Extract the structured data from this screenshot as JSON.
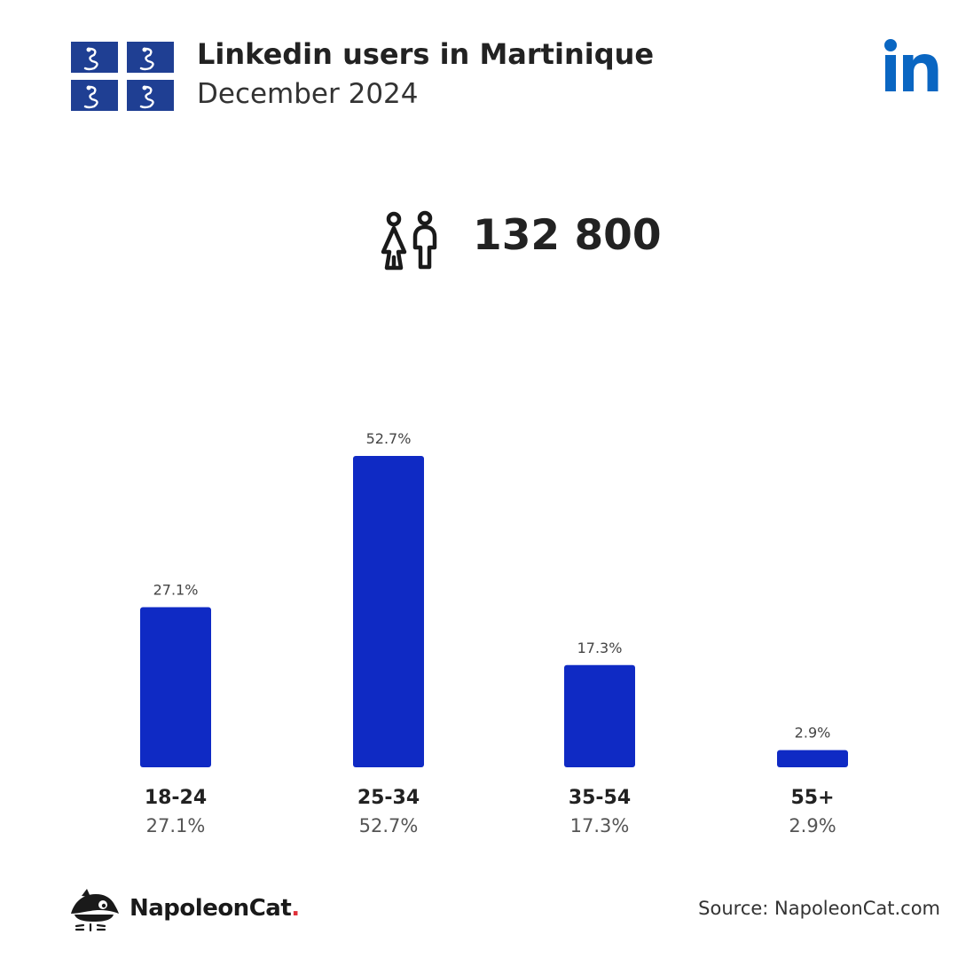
{
  "header": {
    "title": "Linkedin users in Martinique",
    "subtitle": "December 2024"
  },
  "summary": {
    "total_users": "132 800"
  },
  "colors": {
    "bar": "#0f2ac4",
    "linkedin": "#0a66c2",
    "flag_blue": "#1f3f93",
    "text": "#222222",
    "muted": "#555555"
  },
  "icons": {
    "flag": "martinique-flag-icon",
    "brand": "linkedin-logo-icon",
    "users": "users-icon",
    "footer": "napoleoncat-logo-icon"
  },
  "chart_data": {
    "type": "bar",
    "categories": [
      "18-24",
      "25-34",
      "35-54",
      "55+"
    ],
    "values": [
      27.1,
      52.7,
      17.3,
      2.9
    ],
    "value_labels": [
      "27.1%",
      "52.7%",
      "17.3%",
      "2.9%"
    ],
    "category_sublabels": [
      "27.1%",
      "52.7%",
      "17.3%",
      "2.9%"
    ],
    "title": "Linkedin users in Martinique",
    "xlabel": "",
    "ylabel": "",
    "ylim": [
      0,
      52.7
    ],
    "grid": false,
    "legend": "none"
  },
  "footer": {
    "brand_name": "NapoleonCat",
    "brand_dot": ".",
    "source": "Source: NapoleonCat.com"
  }
}
